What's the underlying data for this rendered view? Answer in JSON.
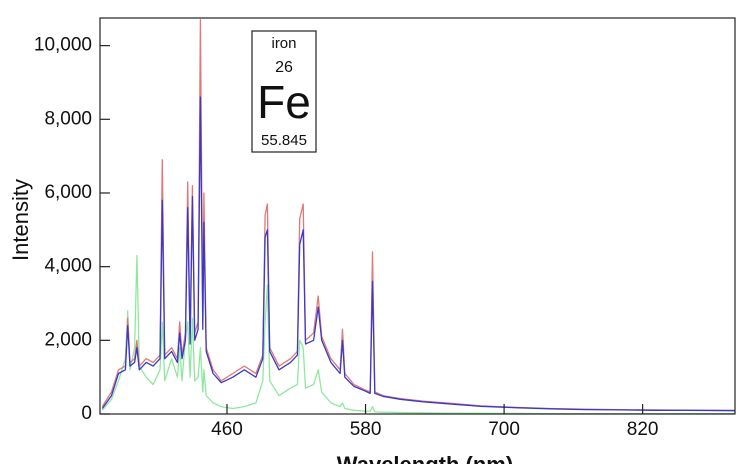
{
  "chart_data": {
    "type": "line",
    "xlabel": "Wavelength (nm)",
    "ylabel": "Intensity",
    "annotation": {
      "name": "iron",
      "number": "26",
      "symbol": "Fe",
      "mass": "55.845"
    },
    "xlim": [
      350,
      900
    ],
    "ylim": [
      0,
      10750
    ],
    "xticks": [
      460,
      580,
      700,
      820
    ],
    "yticks": [
      0,
      {
        "value": 2000,
        "label": "2,000"
      },
      {
        "value": 4000,
        "label": "4,000"
      },
      {
        "value": 6000,
        "label": "6,000"
      },
      {
        "value": 8000,
        "label": "8,000"
      },
      {
        "value": 10000,
        "label": "10,000"
      }
    ],
    "x": [
      352,
      360,
      366,
      372,
      374,
      376,
      380,
      382,
      384,
      390,
      396,
      402,
      404,
      406,
      412,
      417,
      419,
      421,
      424,
      426,
      428,
      430,
      432,
      435,
      437,
      439,
      440,
      442,
      448,
      455,
      465,
      475,
      485,
      491,
      493,
      495,
      497,
      505,
      515,
      521,
      523,
      526,
      528,
      535,
      539,
      542,
      550,
      558,
      560,
      562,
      570,
      580,
      584,
      586,
      588,
      595,
      610,
      630,
      650,
      680,
      710,
      740,
      770,
      800,
      830,
      860,
      900
    ],
    "series": [
      {
        "color": "#90e8a0",
        "values": [
          100,
          400,
          900,
          1500,
          2800,
          1200,
          1800,
          4300,
          1300,
          1000,
          800,
          1200,
          2500,
          900,
          1500,
          1000,
          1800,
          900,
          2000,
          2500,
          1000,
          2600,
          900,
          1000,
          1800,
          600,
          1200,
          500,
          300,
          200,
          150,
          200,
          300,
          900,
          2500,
          3500,
          900,
          500,
          700,
          800,
          2000,
          1800,
          700,
          800,
          1200,
          600,
          300,
          200,
          300,
          150,
          100,
          80,
          70,
          200,
          60,
          50,
          40,
          30,
          25,
          20,
          15,
          10,
          10,
          10,
          10,
          10,
          10
        ]
      },
      {
        "color": "#e07878",
        "values": [
          200,
          600,
          1200,
          1300,
          2600,
          1400,
          1500,
          2000,
          1300,
          1500,
          1400,
          1600,
          6900,
          1600,
          1800,
          1500,
          2500,
          1600,
          2200,
          6300,
          2000,
          6200,
          2200,
          2500,
          10700,
          2500,
          6000,
          1800,
          1200,
          900,
          1100,
          1300,
          1100,
          1600,
          5400,
          5700,
          1800,
          1300,
          1500,
          1700,
          5300,
          5700,
          2000,
          2200,
          3200,
          2100,
          1500,
          1200,
          2300,
          1100,
          800,
          650,
          600,
          4400,
          600,
          500,
          420,
          350,
          300,
          220,
          180,
          150,
          130,
          120,
          110,
          100,
          100
        ]
      },
      {
        "color": "#3a3ac8",
        "values": [
          150,
          500,
          1100,
          1200,
          2400,
          1300,
          1400,
          1800,
          1200,
          1400,
          1300,
          1500,
          5800,
          1500,
          1700,
          1400,
          2200,
          1500,
          2000,
          5600,
          1900,
          5900,
          2000,
          2300,
          8600,
          2300,
          5200,
          1700,
          1100,
          850,
          1000,
          1200,
          1000,
          1500,
          4800,
          5000,
          1700,
          1200,
          1400,
          1600,
          4600,
          5000,
          1900,
          2000,
          2900,
          2000,
          1400,
          1100,
          2000,
          1000,
          750,
          620,
          560,
          3600,
          560,
          480,
          400,
          330,
          280,
          210,
          170,
          140,
          120,
          110,
          100,
          100,
          90
        ]
      }
    ]
  }
}
